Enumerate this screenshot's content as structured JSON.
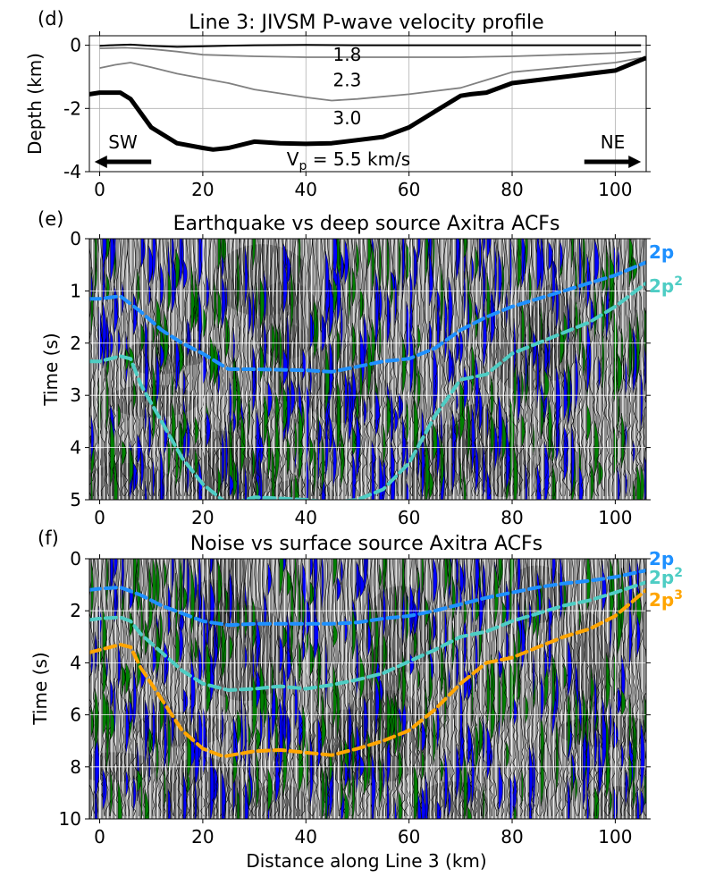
{
  "figure": {
    "xlabel": "Distance along Line 3 (km)",
    "x_ticks": [
      0,
      20,
      40,
      60,
      80,
      100
    ],
    "xlim": [
      -2,
      106
    ]
  },
  "chart_data": [
    {
      "panel": "(d)",
      "type": "line",
      "title": "Line 3: JIVSM P-wave velocity profile",
      "ylabel": "Depth (km)",
      "ylim": [
        -4,
        0.3
      ],
      "y_ticks": [
        0,
        -2,
        -4
      ],
      "grid": true,
      "layer_labels": [
        {
          "text": "1.8",
          "x": 48,
          "y": -0.3
        },
        {
          "text": "2.3",
          "x": 48,
          "y": -1.1
        },
        {
          "text": "3.0",
          "x": 48,
          "y": -2.3
        }
      ],
      "bottom_label": {
        "main": "V",
        "sub": "p",
        "rest": " = 5.5 km/s"
      },
      "arrows": [
        {
          "text": "SW",
          "direction": "left",
          "x_from": 10,
          "x_to": -1
        },
        {
          "text": "NE",
          "direction": "right",
          "x_from": 94,
          "x_to": 105
        }
      ],
      "series": [
        {
          "color": "#000000",
          "x": [
            0,
            2,
            6,
            10,
            15,
            20,
            30,
            40,
            50,
            60,
            70,
            80,
            90,
            100,
            105
          ],
          "y": [
            -0.02,
            0.0,
            0.02,
            -0.02,
            -0.05,
            -0.03,
            0.0,
            0.01,
            0.0,
            0.0,
            0.0,
            0.0,
            0.0,
            0.0,
            0.0
          ]
        },
        {
          "color": "#808080",
          "x": [
            0,
            5,
            10,
            15,
            20,
            30,
            40,
            50,
            60,
            70,
            80,
            90,
            100,
            105
          ],
          "y": [
            -0.1,
            -0.08,
            -0.12,
            -0.2,
            -0.3,
            -0.35,
            -0.38,
            -0.38,
            -0.38,
            -0.38,
            -0.35,
            -0.3,
            -0.25,
            -0.2
          ]
        },
        {
          "color": "#808080",
          "x": [
            0,
            3,
            6,
            10,
            15,
            20,
            25,
            30,
            40,
            45,
            50,
            60,
            70,
            75,
            80,
            90,
            100,
            105
          ],
          "y": [
            -0.72,
            -0.62,
            -0.55,
            -0.7,
            -0.9,
            -1.05,
            -1.2,
            -1.4,
            -1.65,
            -1.75,
            -1.7,
            -1.55,
            -1.35,
            -1.1,
            -0.85,
            -0.7,
            -0.55,
            -0.4
          ]
        },
        {
          "color": "#000000",
          "width": "thick",
          "x": [
            -2,
            0,
            4,
            6,
            10,
            15,
            20,
            22,
            25,
            30,
            35,
            40,
            45,
            50,
            55,
            60,
            65,
            70,
            72,
            75,
            80,
            85,
            90,
            95,
            100,
            103,
            106
          ],
          "y": [
            -1.55,
            -1.5,
            -1.5,
            -1.7,
            -2.6,
            -3.1,
            -3.25,
            -3.3,
            -3.25,
            -3.05,
            -3.1,
            -3.12,
            -3.1,
            -3.0,
            -2.9,
            -2.6,
            -2.1,
            -1.6,
            -1.55,
            -1.5,
            -1.2,
            -1.1,
            -1.0,
            -0.9,
            -0.8,
            -0.6,
            -0.4
          ]
        }
      ]
    },
    {
      "panel": "(e)",
      "type": "line",
      "title": "Earthquake vs deep source Axitra ACFs",
      "ylabel": "Time (s)",
      "ylim": [
        5,
        0
      ],
      "y_ticks": [
        0,
        1,
        2,
        3,
        4,
        5
      ],
      "grid": true,
      "series": [
        {
          "name": "2p",
          "color": "#1E90FF",
          "dashed": true,
          "x": [
            -2,
            0,
            4,
            8,
            12,
            16,
            20,
            25,
            30,
            40,
            45,
            50,
            55,
            60,
            65,
            70,
            75,
            80,
            85,
            90,
            95,
            100,
            106
          ],
          "y": [
            1.15,
            1.15,
            1.1,
            1.4,
            1.75,
            2.0,
            2.2,
            2.5,
            2.5,
            2.52,
            2.55,
            2.45,
            2.35,
            2.3,
            2.1,
            1.75,
            1.5,
            1.3,
            1.15,
            1.0,
            0.85,
            0.7,
            0.45
          ]
        },
        {
          "name": "2p",
          "superscript": "2",
          "color": "#4ECDC4",
          "dashed": true,
          "x": [
            -2,
            0,
            4,
            6,
            8,
            12,
            16,
            20,
            25,
            30,
            40,
            45,
            50,
            55,
            60,
            65,
            70,
            75,
            80,
            85,
            90,
            95,
            100,
            106
          ],
          "y": [
            2.35,
            2.35,
            2.25,
            2.3,
            2.8,
            3.5,
            4.2,
            4.7,
            5.1,
            4.95,
            5.0,
            5.05,
            5.0,
            4.8,
            4.3,
            3.4,
            2.7,
            2.6,
            2.2,
            2.0,
            1.8,
            1.6,
            1.3,
            0.85
          ]
        }
      ]
    },
    {
      "panel": "(f)",
      "type": "line",
      "title": "Noise vs surface source Axitra ACFs",
      "ylabel": "Time (s)",
      "ylim": [
        10,
        0
      ],
      "y_ticks": [
        0,
        2,
        4,
        6,
        8,
        10
      ],
      "grid": true,
      "series": [
        {
          "name": "2p",
          "color": "#1E90FF",
          "dashed": true,
          "x": [
            -2,
            0,
            4,
            8,
            12,
            16,
            20,
            25,
            30,
            40,
            45,
            50,
            55,
            60,
            65,
            70,
            75,
            80,
            85,
            90,
            95,
            100,
            106
          ],
          "y": [
            1.2,
            1.15,
            1.1,
            1.4,
            1.8,
            2.1,
            2.4,
            2.55,
            2.5,
            2.5,
            2.5,
            2.45,
            2.3,
            2.2,
            2.0,
            1.75,
            1.5,
            1.3,
            1.1,
            0.95,
            0.85,
            0.7,
            0.45
          ]
        },
        {
          "name": "2p",
          "superscript": "2",
          "color": "#4ECDC4",
          "dashed": true,
          "x": [
            -2,
            0,
            4,
            6,
            8,
            12,
            16,
            20,
            25,
            30,
            35,
            40,
            45,
            50,
            55,
            60,
            65,
            70,
            75,
            80,
            85,
            90,
            95,
            100,
            106
          ],
          "y": [
            2.35,
            2.3,
            2.25,
            2.4,
            2.9,
            3.6,
            4.3,
            4.8,
            5.05,
            5.0,
            4.9,
            5.0,
            4.85,
            4.65,
            4.4,
            3.95,
            3.5,
            3.0,
            2.8,
            2.4,
            2.1,
            1.8,
            1.6,
            1.3,
            0.9
          ]
        },
        {
          "name": "2p",
          "superscript": "3",
          "color": "#FFA500",
          "dashed": true,
          "x": [
            -2,
            0,
            4,
            6,
            8,
            12,
            16,
            20,
            24,
            30,
            35,
            40,
            45,
            50,
            55,
            60,
            65,
            70,
            75,
            80,
            85,
            90,
            95,
            100,
            106
          ],
          "y": [
            3.6,
            3.5,
            3.3,
            3.4,
            4.2,
            5.4,
            6.6,
            7.3,
            7.6,
            7.4,
            7.35,
            7.45,
            7.55,
            7.3,
            7.0,
            6.6,
            5.8,
            4.8,
            4.0,
            3.8,
            3.4,
            3.0,
            2.7,
            2.2,
            1.2
          ]
        }
      ]
    }
  ]
}
